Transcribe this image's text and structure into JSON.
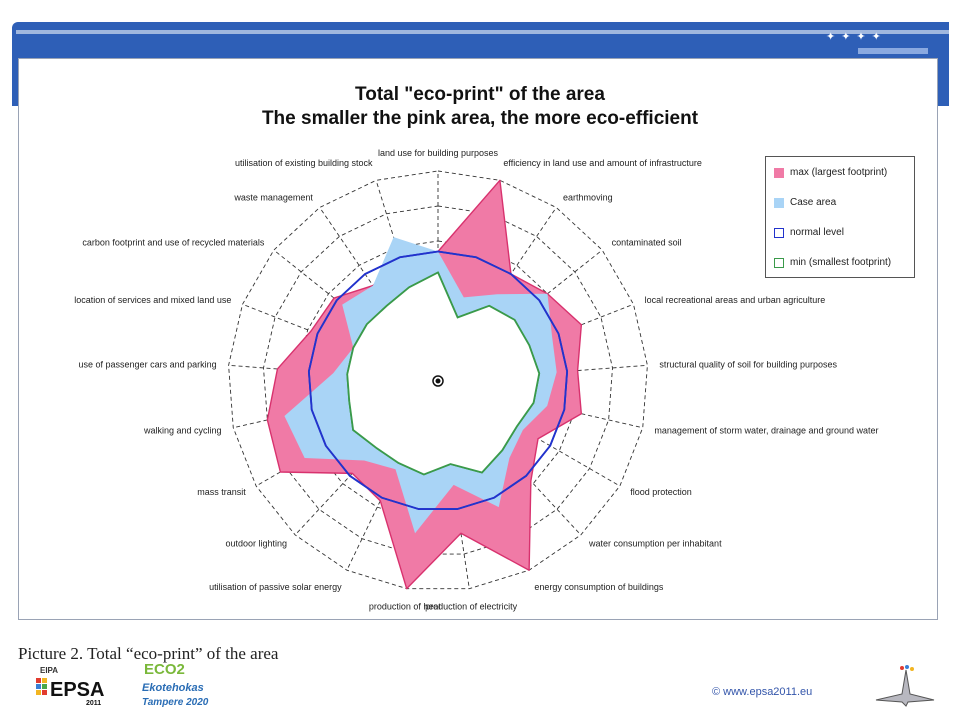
{
  "caption": "Picture 2. Total “eco-print” of the area",
  "footer": {
    "copyright_symbol": "©",
    "url": "www.epsa2011.eu"
  },
  "logos": {
    "epsa_top": "EIPA",
    "epsa_main": "EPSA",
    "epsa_year": "2011",
    "eco_main": "ECO2",
    "eco_line1": "Ekotehokas",
    "eco_line2": "Tampere 2020"
  },
  "colors": {
    "header_blue": "#2e5fb7",
    "max_fill": "#f07aa6",
    "case_fill": "#a9d4f6",
    "normal_line": "#2233cc",
    "min_line": "#3a9a4a"
  },
  "chart_data": {
    "type": "radar",
    "title": "Total \"eco-print\" of the area",
    "subtitle": "The smaller the pink area, the more eco-efficient",
    "grid_levels": 6,
    "rmax": 6,
    "categories": [
      "land use for building purposes",
      "efficiency in land use and amount of infrastructure",
      "earthmoving",
      "contaminated soil",
      "local recreational areas and urban agriculture",
      "structural quality of soil for building purposes",
      "management of storm water, drainage and ground water",
      "flood protection",
      "water consumption per inhabitant",
      "energy consumption of buildings",
      "production of electricity",
      "production of heat",
      "utilisation of passive solar energy",
      "outdoor lighting",
      "mass transit",
      "walking and cycling",
      "use of passenger cars and parking",
      "location of services and mixed land use",
      "carbon footprint and use of recycled materials",
      "waste management",
      "utilisation of existing building stock"
    ],
    "legend_position": "top-right",
    "series": [
      {
        "name": "max (largest footprint)",
        "values": [
          3.7,
          6.0,
          3.7,
          4.0,
          4.4,
          4.0,
          4.2,
          3.3,
          3.9,
          6.0,
          4.4,
          6.0,
          3.8,
          3.6,
          5.2,
          5.0,
          4.6,
          3.9,
          3.8,
          3.3,
          3.6
        ]
      },
      {
        "name": "Case area",
        "values": [
          3.7,
          2.5,
          3.0,
          4.0,
          3.5,
          3.4,
          3.2,
          2.8,
          3.0,
          4.0,
          3.0,
          4.4,
          2.8,
          3.1,
          4.4,
          4.5,
          3.0,
          2.6,
          3.5,
          3.3,
          4.3
        ]
      },
      {
        "name": "normal level",
        "values": [
          3.7,
          3.7,
          3.7,
          3.7,
          3.7,
          3.7,
          3.7,
          3.7,
          3.7,
          3.7,
          3.7,
          3.7,
          3.7,
          3.7,
          3.7,
          3.7,
          3.7,
          3.7,
          3.7,
          3.7,
          3.7
        ]
      },
      {
        "name": "min (smallest footprint)",
        "values": [
          3.1,
          1.9,
          2.6,
          2.8,
          2.8,
          2.9,
          2.8,
          2.6,
          2.7,
          2.9,
          2.4,
          2.7,
          2.6,
          2.6,
          2.8,
          2.6,
          2.6,
          2.6,
          2.6,
          2.6,
          2.8
        ]
      }
    ]
  }
}
